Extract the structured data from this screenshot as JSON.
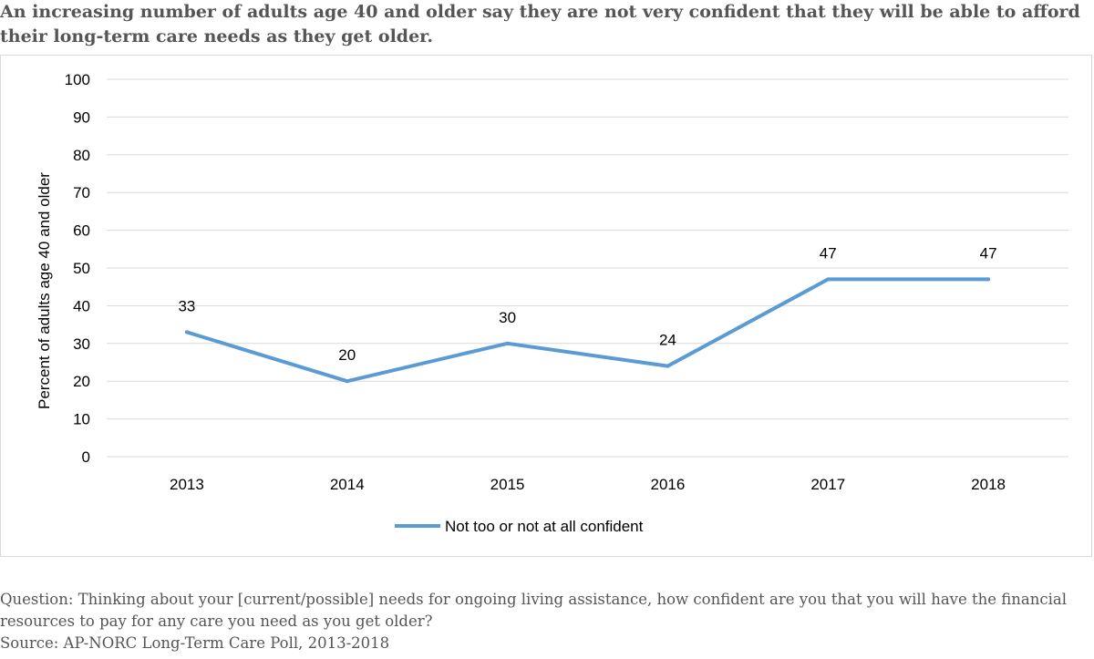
{
  "chart_data": {
    "type": "line",
    "title": "An increasing number of adults age 40 and older say they are not very confident that they will be able to afford their long-term care needs as they get older.",
    "xlabel": "",
    "ylabel": "Percent of adults age 40 and older",
    "categories": [
      "2013",
      "2014",
      "2015",
      "2016",
      "2017",
      "2018"
    ],
    "series": [
      {
        "name": "Not too or not at all confident",
        "values": [
          33,
          20,
          30,
          24,
          47,
          47
        ],
        "color": "#5b9bd5"
      }
    ],
    "ylim": [
      0,
      100
    ],
    "yticks": [
      "0",
      "10",
      "20",
      "30",
      "40",
      "50",
      "60",
      "70",
      "80",
      "90",
      "100"
    ],
    "grid": true,
    "legend": "bottom"
  },
  "footer": {
    "question": "Question: Thinking about your [current/possible] needs for ongoing living assistance, how confident are you that you will have the financial resources to pay for any care you need as you get older?",
    "source": "Source: AP-NORC Long-Term Care Poll, 2013-2018"
  }
}
